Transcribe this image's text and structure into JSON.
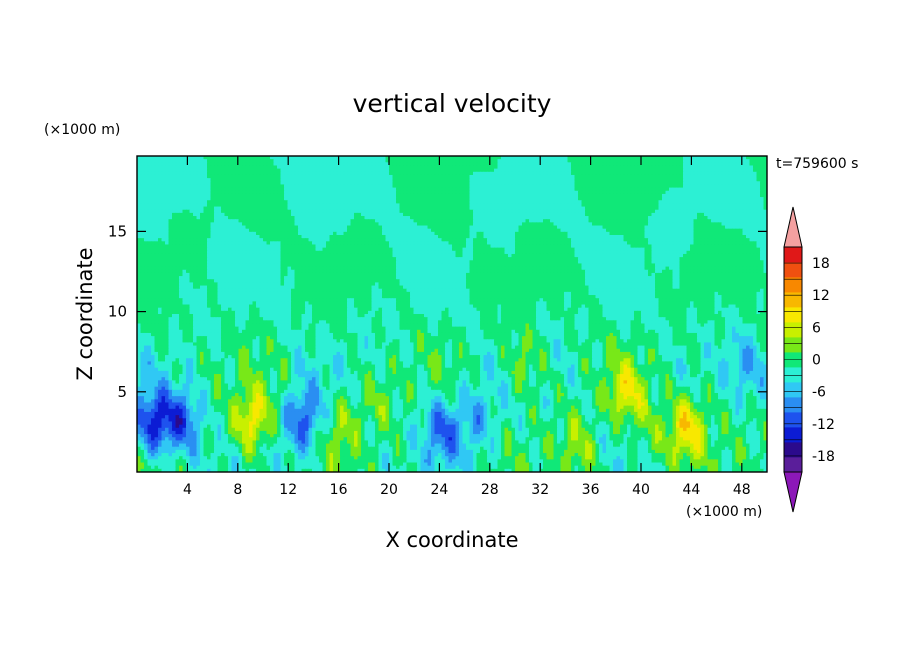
{
  "chart_data": {
    "type": "heatmap",
    "title": "vertical velocity",
    "xlabel": "X coordinate",
    "ylabel": "Z coordinate",
    "x_unit": "(×1000 m)",
    "y_unit": "(×1000 m)",
    "time_label": "t=759600 s",
    "xlim": [
      0,
      50
    ],
    "ylim": [
      0,
      19.7
    ],
    "x_ticks": [
      4,
      8,
      12,
      16,
      20,
      24,
      28,
      32,
      36,
      40,
      44,
      48
    ],
    "y_ticks": [
      5,
      10,
      15
    ],
    "colorbar": {
      "levels": [
        -21,
        -18,
        -15,
        -12,
        -9,
        -6,
        -3,
        0,
        3,
        6,
        9,
        12,
        15,
        18,
        21
      ],
      "tick_values": [
        18,
        12,
        6,
        0,
        -6,
        -12,
        -18
      ],
      "colors": [
        "#5a1e9a",
        "#2b0a8c",
        "#0c1cd4",
        "#1e52ee",
        "#2a8ef2",
        "#30c8f4",
        "#2cf0d4",
        "#10e878",
        "#78e818",
        "#c8f000",
        "#f8e800",
        "#f8b800",
        "#f88800",
        "#f05010",
        "#e01818"
      ],
      "over_color": "#f4a0a0",
      "under_color": "#8c18b8"
    },
    "features": [
      {
        "x": 1.3,
        "z": 3.0,
        "value": -13
      },
      {
        "x": 3.6,
        "z": 3.2,
        "value": -10
      },
      {
        "x": 9.2,
        "z": 3.2,
        "value": 11
      },
      {
        "x": 13.2,
        "z": 3.3,
        "value": -11
      },
      {
        "x": 16.3,
        "z": 3.0,
        "value": 5
      },
      {
        "x": 19.2,
        "z": 4.5,
        "value": 3
      },
      {
        "x": 24.3,
        "z": 2.5,
        "value": -8
      },
      {
        "x": 27.0,
        "z": 3.4,
        "value": -6
      },
      {
        "x": 30.8,
        "z": 6.8,
        "value": 5
      },
      {
        "x": 35.0,
        "z": 1.5,
        "value": 5
      },
      {
        "x": 38.8,
        "z": 4.8,
        "value": 8
      },
      {
        "x": 40.5,
        "z": 2.0,
        "value": 3
      },
      {
        "x": 43.7,
        "z": 2.8,
        "value": 11
      },
      {
        "x": 48.5,
        "z": 6.5,
        "value": -4
      }
    ]
  }
}
